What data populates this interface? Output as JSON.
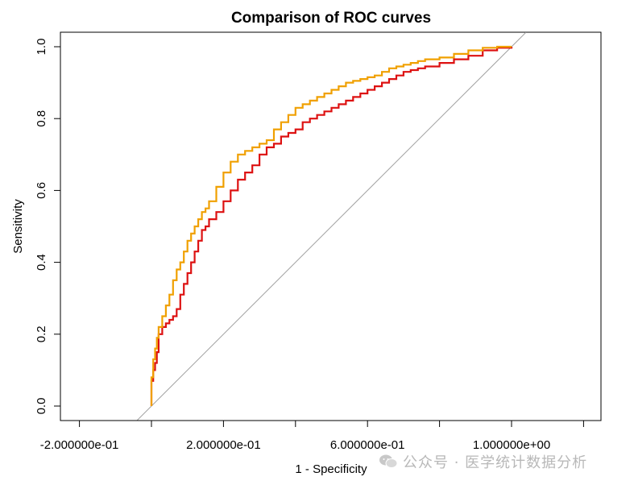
{
  "chart_data": {
    "type": "line",
    "title": "Comparison of ROC curves",
    "xlabel": "1 - Specificity",
    "ylabel": "Sensitivity",
    "xlim": [
      -0.2,
      1.2
    ],
    "ylim": [
      0.0,
      1.0
    ],
    "x_ticks": [
      -0.2,
      0.0,
      0.2,
      0.4,
      0.6,
      0.8,
      1.0,
      1.2
    ],
    "x_tick_labels": [
      "-2.000000e-01",
      "",
      "2.000000e-01",
      "",
      "6.000000e-01",
      "",
      "1.000000e+00",
      ""
    ],
    "y_ticks": [
      0.0,
      0.2,
      0.4,
      0.6,
      0.8,
      1.0
    ],
    "y_tick_labels": [
      "0.0",
      "0.2",
      "0.4",
      "0.6",
      "0.8",
      "1.0"
    ],
    "grid": false,
    "legend": "none",
    "reference_line": {
      "x": [
        -0.04,
        1.04
      ],
      "y": [
        -0.04,
        1.04
      ],
      "color": "#a0a0a0"
    },
    "series": [
      {
        "color": "#dd1111",
        "x": [
          0.0,
          0.0,
          0.005,
          0.01,
          0.015,
          0.02,
          0.03,
          0.04,
          0.05,
          0.06,
          0.07,
          0.08,
          0.09,
          0.1,
          0.11,
          0.12,
          0.13,
          0.14,
          0.15,
          0.16,
          0.18,
          0.2,
          0.22,
          0.24,
          0.26,
          0.28,
          0.3,
          0.32,
          0.34,
          0.36,
          0.38,
          0.4,
          0.42,
          0.44,
          0.46,
          0.48,
          0.5,
          0.52,
          0.54,
          0.56,
          0.58,
          0.6,
          0.62,
          0.64,
          0.66,
          0.68,
          0.7,
          0.72,
          0.74,
          0.76,
          0.8,
          0.84,
          0.88,
          0.92,
          0.96,
          1.0
        ],
        "y": [
          0.0,
          0.07,
          0.1,
          0.12,
          0.15,
          0.2,
          0.22,
          0.23,
          0.24,
          0.25,
          0.27,
          0.31,
          0.34,
          0.37,
          0.4,
          0.43,
          0.46,
          0.49,
          0.5,
          0.52,
          0.54,
          0.57,
          0.6,
          0.63,
          0.65,
          0.67,
          0.7,
          0.72,
          0.73,
          0.75,
          0.76,
          0.77,
          0.79,
          0.8,
          0.81,
          0.82,
          0.83,
          0.84,
          0.85,
          0.86,
          0.87,
          0.88,
          0.89,
          0.9,
          0.91,
          0.92,
          0.93,
          0.935,
          0.94,
          0.945,
          0.955,
          0.965,
          0.975,
          0.99,
          0.997,
          1.0
        ]
      },
      {
        "color": "#f0a000",
        "x": [
          0.0,
          0.0,
          0.005,
          0.01,
          0.015,
          0.02,
          0.03,
          0.04,
          0.05,
          0.06,
          0.07,
          0.08,
          0.09,
          0.1,
          0.11,
          0.12,
          0.13,
          0.14,
          0.15,
          0.16,
          0.18,
          0.2,
          0.22,
          0.24,
          0.26,
          0.28,
          0.3,
          0.32,
          0.34,
          0.36,
          0.38,
          0.4,
          0.42,
          0.44,
          0.46,
          0.48,
          0.5,
          0.52,
          0.54,
          0.56,
          0.58,
          0.6,
          0.62,
          0.64,
          0.66,
          0.68,
          0.7,
          0.72,
          0.74,
          0.76,
          0.8,
          0.84,
          0.88,
          0.92,
          0.96,
          1.0
        ],
        "y": [
          0.0,
          0.08,
          0.13,
          0.16,
          0.19,
          0.22,
          0.25,
          0.28,
          0.31,
          0.35,
          0.38,
          0.4,
          0.43,
          0.46,
          0.48,
          0.5,
          0.52,
          0.54,
          0.55,
          0.57,
          0.61,
          0.65,
          0.68,
          0.7,
          0.71,
          0.72,
          0.73,
          0.74,
          0.77,
          0.79,
          0.81,
          0.83,
          0.84,
          0.85,
          0.86,
          0.87,
          0.88,
          0.89,
          0.9,
          0.905,
          0.91,
          0.915,
          0.92,
          0.93,
          0.94,
          0.945,
          0.95,
          0.955,
          0.96,
          0.965,
          0.97,
          0.98,
          0.99,
          0.997,
          1.0,
          1.0
        ]
      }
    ]
  },
  "watermark": {
    "text": "公众号 · 医学统计数据分析",
    "logo_icon": "wechat-icon"
  }
}
